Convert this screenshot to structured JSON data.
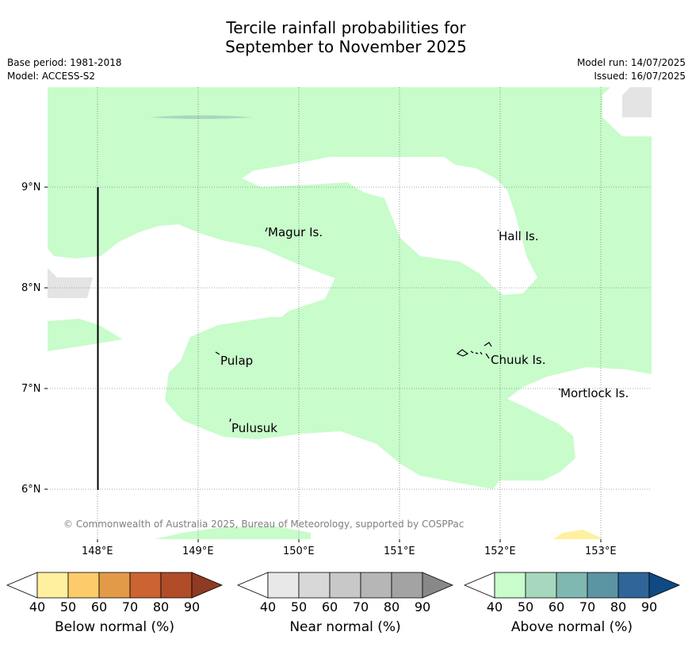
{
  "title_line1": "Tercile rainfall probabilities for",
  "title_line2": "September to November 2025",
  "base_period": "Base period: 1981-2018",
  "model": "Model: ACCESS-S2",
  "model_run": "Model run: 14/07/2025",
  "issued": "Issued: 16/07/2025",
  "copyright": "© Commonwealth of Australia 2025, Bureau of Meteorology, supported by COSPPac",
  "lon_ticks": [
    "148°E",
    "149°E",
    "150°E",
    "151°E",
    "152°E",
    "153°E"
  ],
  "lat_ticks": [
    "9°N",
    "8°N",
    "7°N",
    "6°N"
  ],
  "places": [
    "Magur Is.",
    "Hall Is.",
    "Pulap",
    "Chuuk Is.",
    "Mortlock Is.",
    "Pulusuk"
  ],
  "legends": [
    {
      "label": "Below normal (%)",
      "ticks": [
        "40",
        "50",
        "60",
        "70",
        "80",
        "90"
      ],
      "colors": [
        "#ffffff",
        "#fff0a0",
        "#fdcb69",
        "#e39a48",
        "#cb6332",
        "#b04c28",
        "#8f3a22"
      ]
    },
    {
      "label": "Near normal (%)",
      "ticks": [
        "40",
        "50",
        "60",
        "70",
        "80",
        "90"
      ],
      "colors": [
        "#ffffff",
        "#e8e8e8",
        "#d8d8d8",
        "#c8c8c8",
        "#b6b6b6",
        "#a3a3a3",
        "#888888"
      ]
    },
    {
      "label": "Above normal (%)",
      "ticks": [
        "40",
        "50",
        "60",
        "70",
        "80",
        "90"
      ],
      "colors": [
        "#ffffff",
        "#c8fccb",
        "#a6d8bd",
        "#7fb8b0",
        "#5b94a3",
        "#2f6598",
        "#0f4a82"
      ]
    }
  ]
}
